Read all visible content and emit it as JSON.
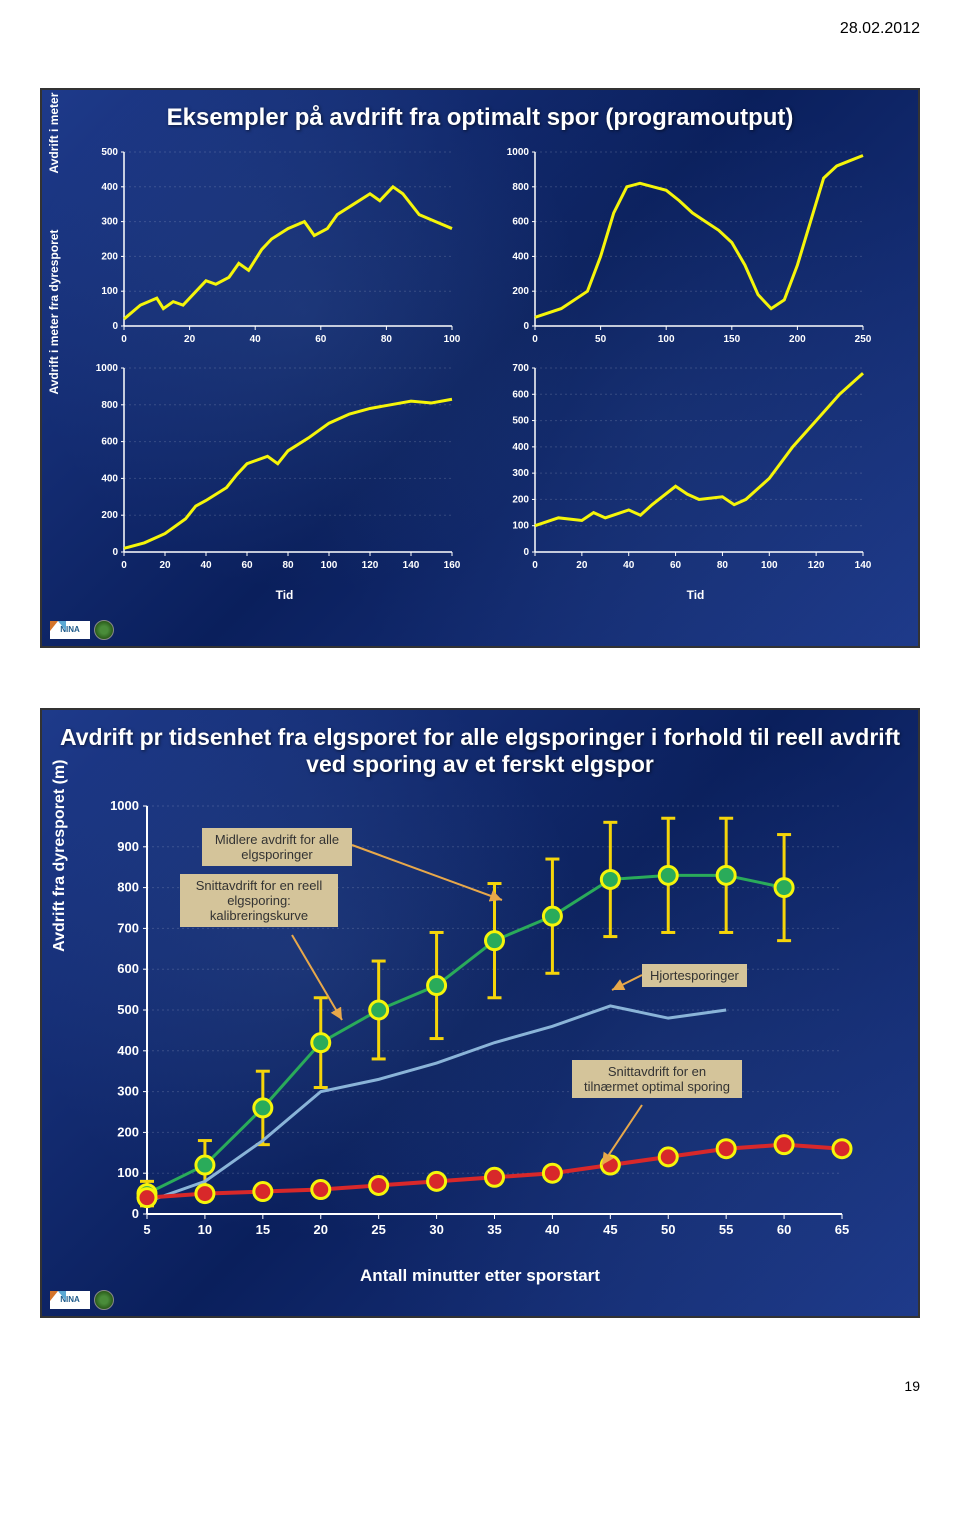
{
  "date": "28.02.2012",
  "page_number": "19",
  "slide1": {
    "title": "Eksempler på avdrift fra optimalt spor (programoutput)",
    "y_axis_label": "Avdrift i meter fra dyresporet",
    "y_axis_label2": "Avdrift i meter fra dyresporet",
    "x_axis_label": "Tid",
    "x_axis_label2": "Tid",
    "line_color": "#f5f50a",
    "line_width": 3,
    "grid_color": "rgba(255,255,255,0.15)",
    "axis_color": "#ffffff",
    "background_color": "transparent",
    "tick_fontsize": 10,
    "charts": [
      {
        "xlim": [
          0,
          100
        ],
        "xticks": [
          0,
          20,
          40,
          60,
          80,
          100
        ],
        "ylim": [
          0,
          500
        ],
        "yticks": [
          0,
          100,
          200,
          300,
          400,
          500
        ],
        "x": [
          0,
          5,
          10,
          12,
          15,
          18,
          22,
          25,
          28,
          32,
          35,
          38,
          42,
          45,
          50,
          55,
          58,
          62,
          65,
          70,
          75,
          78,
          82,
          85,
          90,
          95,
          100
        ],
        "y": [
          20,
          60,
          80,
          50,
          70,
          60,
          100,
          130,
          120,
          140,
          180,
          160,
          220,
          250,
          280,
          300,
          260,
          280,
          320,
          350,
          380,
          360,
          400,
          380,
          320,
          300,
          280
        ]
      },
      {
        "xlim": [
          0,
          250
        ],
        "xticks": [
          0,
          50,
          100,
          150,
          200,
          250
        ],
        "ylim": [
          0,
          1000
        ],
        "yticks": [
          0,
          200,
          400,
          600,
          800,
          1000
        ],
        "x": [
          0,
          20,
          40,
          50,
          60,
          70,
          80,
          90,
          100,
          110,
          120,
          130,
          140,
          150,
          160,
          170,
          180,
          190,
          200,
          210,
          220,
          230,
          240,
          250
        ],
        "y": [
          50,
          100,
          200,
          400,
          650,
          800,
          820,
          800,
          780,
          720,
          650,
          600,
          550,
          480,
          350,
          180,
          100,
          150,
          350,
          600,
          850,
          920,
          950,
          980
        ]
      },
      {
        "xlim": [
          0,
          160
        ],
        "xticks": [
          0,
          20,
          40,
          60,
          80,
          100,
          120,
          140,
          160
        ],
        "ylim": [
          0,
          1000
        ],
        "yticks": [
          0,
          200,
          400,
          600,
          800,
          1000
        ],
        "x": [
          0,
          10,
          20,
          30,
          35,
          40,
          50,
          55,
          60,
          70,
          75,
          80,
          90,
          100,
          110,
          120,
          130,
          140,
          150,
          160
        ],
        "y": [
          20,
          50,
          100,
          180,
          250,
          280,
          350,
          420,
          480,
          520,
          480,
          550,
          620,
          700,
          750,
          780,
          800,
          820,
          810,
          830
        ]
      },
      {
        "xlim": [
          0,
          140
        ],
        "xticks": [
          0,
          20,
          40,
          60,
          80,
          100,
          120,
          140
        ],
        "ylim": [
          0,
          700
        ],
        "yticks": [
          0,
          100,
          200,
          300,
          400,
          500,
          600,
          700
        ],
        "x": [
          0,
          10,
          20,
          25,
          30,
          40,
          45,
          50,
          60,
          65,
          70,
          80,
          85,
          90,
          100,
          110,
          120,
          130,
          140
        ],
        "y": [
          100,
          130,
          120,
          150,
          130,
          160,
          140,
          180,
          250,
          220,
          200,
          210,
          180,
          200,
          280,
          400,
          500,
          600,
          680
        ]
      }
    ]
  },
  "slide2": {
    "title": "Avdrift pr tidsenhet fra elgsporet for alle elgsporinger i forhold til reell avdrift ved sporing av et ferskt elgspor",
    "y_axis_label": "Avdrift fra dyresporet (m)",
    "x_axis_label": "Antall minutter etter sporstart",
    "grid_color": "rgba(255,255,255,0.15)",
    "axis_color": "#ffffff",
    "chart": {
      "type": "line",
      "xlim": [
        5,
        65
      ],
      "xticks": [
        5,
        10,
        15,
        20,
        25,
        30,
        35,
        40,
        45,
        50,
        55,
        60,
        65
      ],
      "ylim": [
        0,
        1000
      ],
      "yticks": [
        0,
        100,
        200,
        300,
        400,
        500,
        600,
        700,
        800,
        900,
        1000
      ],
      "series": [
        {
          "name": "green",
          "color": "#2aab5a",
          "line_width": 3,
          "marker_border": "#f5f50a",
          "marker_fill": "#2aab5a",
          "marker_size": 9,
          "x": [
            5,
            10,
            15,
            20,
            25,
            30,
            35,
            40,
            45,
            50,
            55,
            60
          ],
          "y": [
            50,
            120,
            260,
            420,
            500,
            560,
            670,
            730,
            820,
            830,
            830,
            800
          ],
          "ebar": [
            30,
            60,
            90,
            110,
            120,
            130,
            140,
            140,
            140,
            140,
            140,
            130
          ],
          "ebar_color": "#f5d50a"
        },
        {
          "name": "lightblue",
          "color": "#8ab4d8",
          "line_width": 3,
          "marker": null,
          "x": [
            5,
            10,
            15,
            20,
            25,
            30,
            35,
            40,
            45,
            50,
            55
          ],
          "y": [
            30,
            80,
            180,
            300,
            330,
            370,
            420,
            460,
            510,
            480,
            500
          ]
        },
        {
          "name": "red",
          "color": "#d8282a",
          "line_width": 4,
          "marker_border": "#f5f50a",
          "marker_fill": "#d8282a",
          "marker_size": 9,
          "x": [
            5,
            10,
            15,
            20,
            25,
            30,
            35,
            40,
            45,
            50,
            55,
            60,
            65
          ],
          "y": [
            40,
            50,
            55,
            60,
            70,
            80,
            90,
            100,
            120,
            140,
            160,
            170,
            160
          ]
        }
      ]
    },
    "callouts": {
      "midlere": "Midlere avdrift for alle elgsporinger",
      "snitt1": "Snittavdrift for en reell elgsporing: kalibreringskurve",
      "hjorte": "Hjortesporinger",
      "snitt2": "Snittavdrift for en tilnærmet optimal sporing"
    }
  }
}
